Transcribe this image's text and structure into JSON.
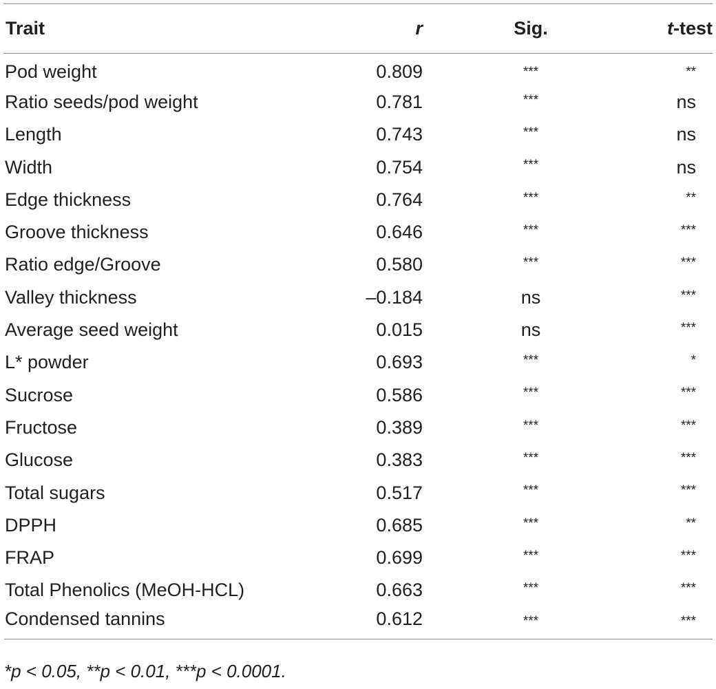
{
  "table": {
    "headers": {
      "trait": "Trait",
      "r": "r",
      "sig": "Sig.",
      "t_prefix": "t",
      "t_suffix": "-test"
    },
    "rows": [
      {
        "trait": "Pod weight",
        "r": "0.809",
        "sig": "***",
        "t": "**"
      },
      {
        "trait": "Ratio seeds/pod weight",
        "r": "0.781",
        "sig": "***",
        "t": "ns"
      },
      {
        "trait": "Length",
        "r": "0.743",
        "sig": "***",
        "t": "ns"
      },
      {
        "trait": "Width",
        "r": "0.754",
        "sig": "***",
        "t": "ns"
      },
      {
        "trait": "Edge thickness",
        "r": "0.764",
        "sig": "***",
        "t": "**"
      },
      {
        "trait": "Groove thickness",
        "r": "0.646",
        "sig": "***",
        "t": "***"
      },
      {
        "trait": "Ratio edge/Groove",
        "r": "0.580",
        "sig": "***",
        "t": "***"
      },
      {
        "trait": "Valley thickness",
        "r": "–0.184",
        "sig": "ns",
        "t": "***"
      },
      {
        "trait": "Average seed weight",
        "r": "0.015",
        "sig": "ns",
        "t": "***"
      },
      {
        "trait": "L* powder",
        "r": "0.693",
        "sig": "***",
        "t": "*"
      },
      {
        "trait": "Sucrose",
        "r": "0.586",
        "sig": "***",
        "t": "***"
      },
      {
        "trait": "Fructose",
        "r": "0.389",
        "sig": "***",
        "t": "***"
      },
      {
        "trait": "Glucose",
        "r": "0.383",
        "sig": "***",
        "t": "***"
      },
      {
        "trait": "Total sugars",
        "r": "0.517",
        "sig": "***",
        "t": "***"
      },
      {
        "trait": "DPPH",
        "r": "0.685",
        "sig": "***",
        "t": "**"
      },
      {
        "trait": "FRAP",
        "r": "0.699",
        "sig": "***",
        "t": "***"
      },
      {
        "trait": "Total Phenolics (MeOH-HCL)",
        "r": "0.663",
        "sig": "***",
        "t": "***"
      },
      {
        "trait": "Condensed tannins",
        "r": "0.612",
        "sig": "***",
        "t": "***"
      }
    ]
  },
  "footnote": "*p < 0.05, **p < 0.01, ***p < 0.0001."
}
